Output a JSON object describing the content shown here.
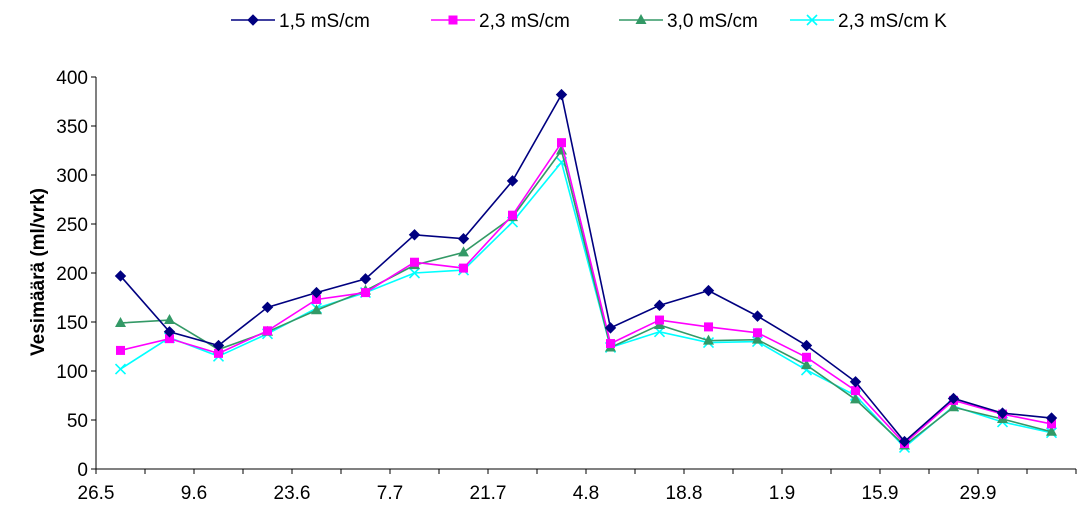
{
  "chart_data": {
    "type": "line",
    "title": "",
    "xlabel": "",
    "ylabel": "Vesimäärä (ml/vrk)",
    "ylim": [
      0,
      400
    ],
    "yticks": [
      0,
      50,
      100,
      150,
      200,
      250,
      300,
      350,
      400
    ],
    "x_tick_labels": [
      "26.5",
      "9.6",
      "23.6",
      "7.7",
      "21.7",
      "4.8",
      "18.8",
      "1.9",
      "15.9",
      "29.9"
    ],
    "grid": false,
    "legend_position": "top",
    "series": [
      {
        "name": "1,5 mS/cm",
        "color": "#000080",
        "marker": "diamond",
        "values": [
          197,
          140,
          126,
          165,
          180,
          194,
          239,
          235,
          294,
          382,
          144,
          167,
          182,
          156,
          126,
          89,
          28,
          72,
          57,
          52
        ]
      },
      {
        "name": "2,3 mS/cm",
        "color": "#FF00FF",
        "marker": "square",
        "values": [
          121,
          133,
          118,
          141,
          173,
          180,
          211,
          205,
          259,
          333,
          128,
          152,
          145,
          139,
          114,
          80,
          26,
          70,
          56,
          46
        ]
      },
      {
        "name": "3,0 mS/cm",
        "color": "#339966",
        "marker": "triangle",
        "values": [
          149,
          152,
          122,
          140,
          162,
          182,
          208,
          221,
          257,
          325,
          124,
          147,
          131,
          132,
          106,
          71,
          24,
          63,
          51,
          38
        ]
      },
      {
        "name": "2,3 mS/cm K",
        "color": "#00FFFF",
        "marker": "x",
        "values": [
          102,
          134,
          115,
          138,
          164,
          180,
          200,
          203,
          252,
          313,
          124,
          140,
          129,
          130,
          101,
          75,
          22,
          64,
          48,
          37
        ]
      }
    ]
  }
}
